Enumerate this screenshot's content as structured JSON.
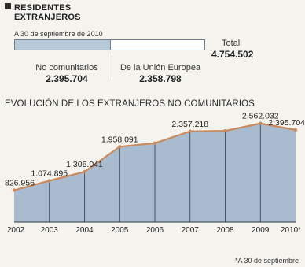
{
  "header": {
    "title_line1": "RESIDENTES",
    "title_line2": "EXTRANJEROS"
  },
  "summary": {
    "date_label": "A 30 de septiembre de 2010",
    "total_label": "Total",
    "total_value": "4.754.502",
    "segments": [
      {
        "label": "No comunitarios",
        "value": "2.395.704",
        "amount": 2395704
      },
      {
        "label": "De la Unión Europea",
        "value": "2.358.798",
        "amount": 2358798
      }
    ],
    "total_amount": 4754502
  },
  "chart_data": {
    "type": "area",
    "title": "EVOLUCIÓN DE LOS EXTRANJEROS NO COMUNITARIOS",
    "categories": [
      "2002",
      "2003",
      "2004",
      "2005",
      "2006",
      "2007",
      "2008",
      "2009",
      "2010*"
    ],
    "series": [
      {
        "values": [
          826956,
          1074895,
          1305041,
          1958091,
          2050000,
          2357218,
          2370000,
          2562032,
          2395704
        ]
      }
    ],
    "data_labels": [
      "826.956",
      "1.074.895",
      "1.305.041",
      "1.958.091",
      "",
      "2.357.218",
      "",
      "2.562.032",
      "2.395.704"
    ],
    "ylim": [
      0,
      2700000
    ],
    "grid": false,
    "colors": {
      "fill": "#a9bccf",
      "line": "#c98a5e",
      "marker": "#c98a5e"
    },
    "footnote": "*A 30 de septiembre"
  }
}
